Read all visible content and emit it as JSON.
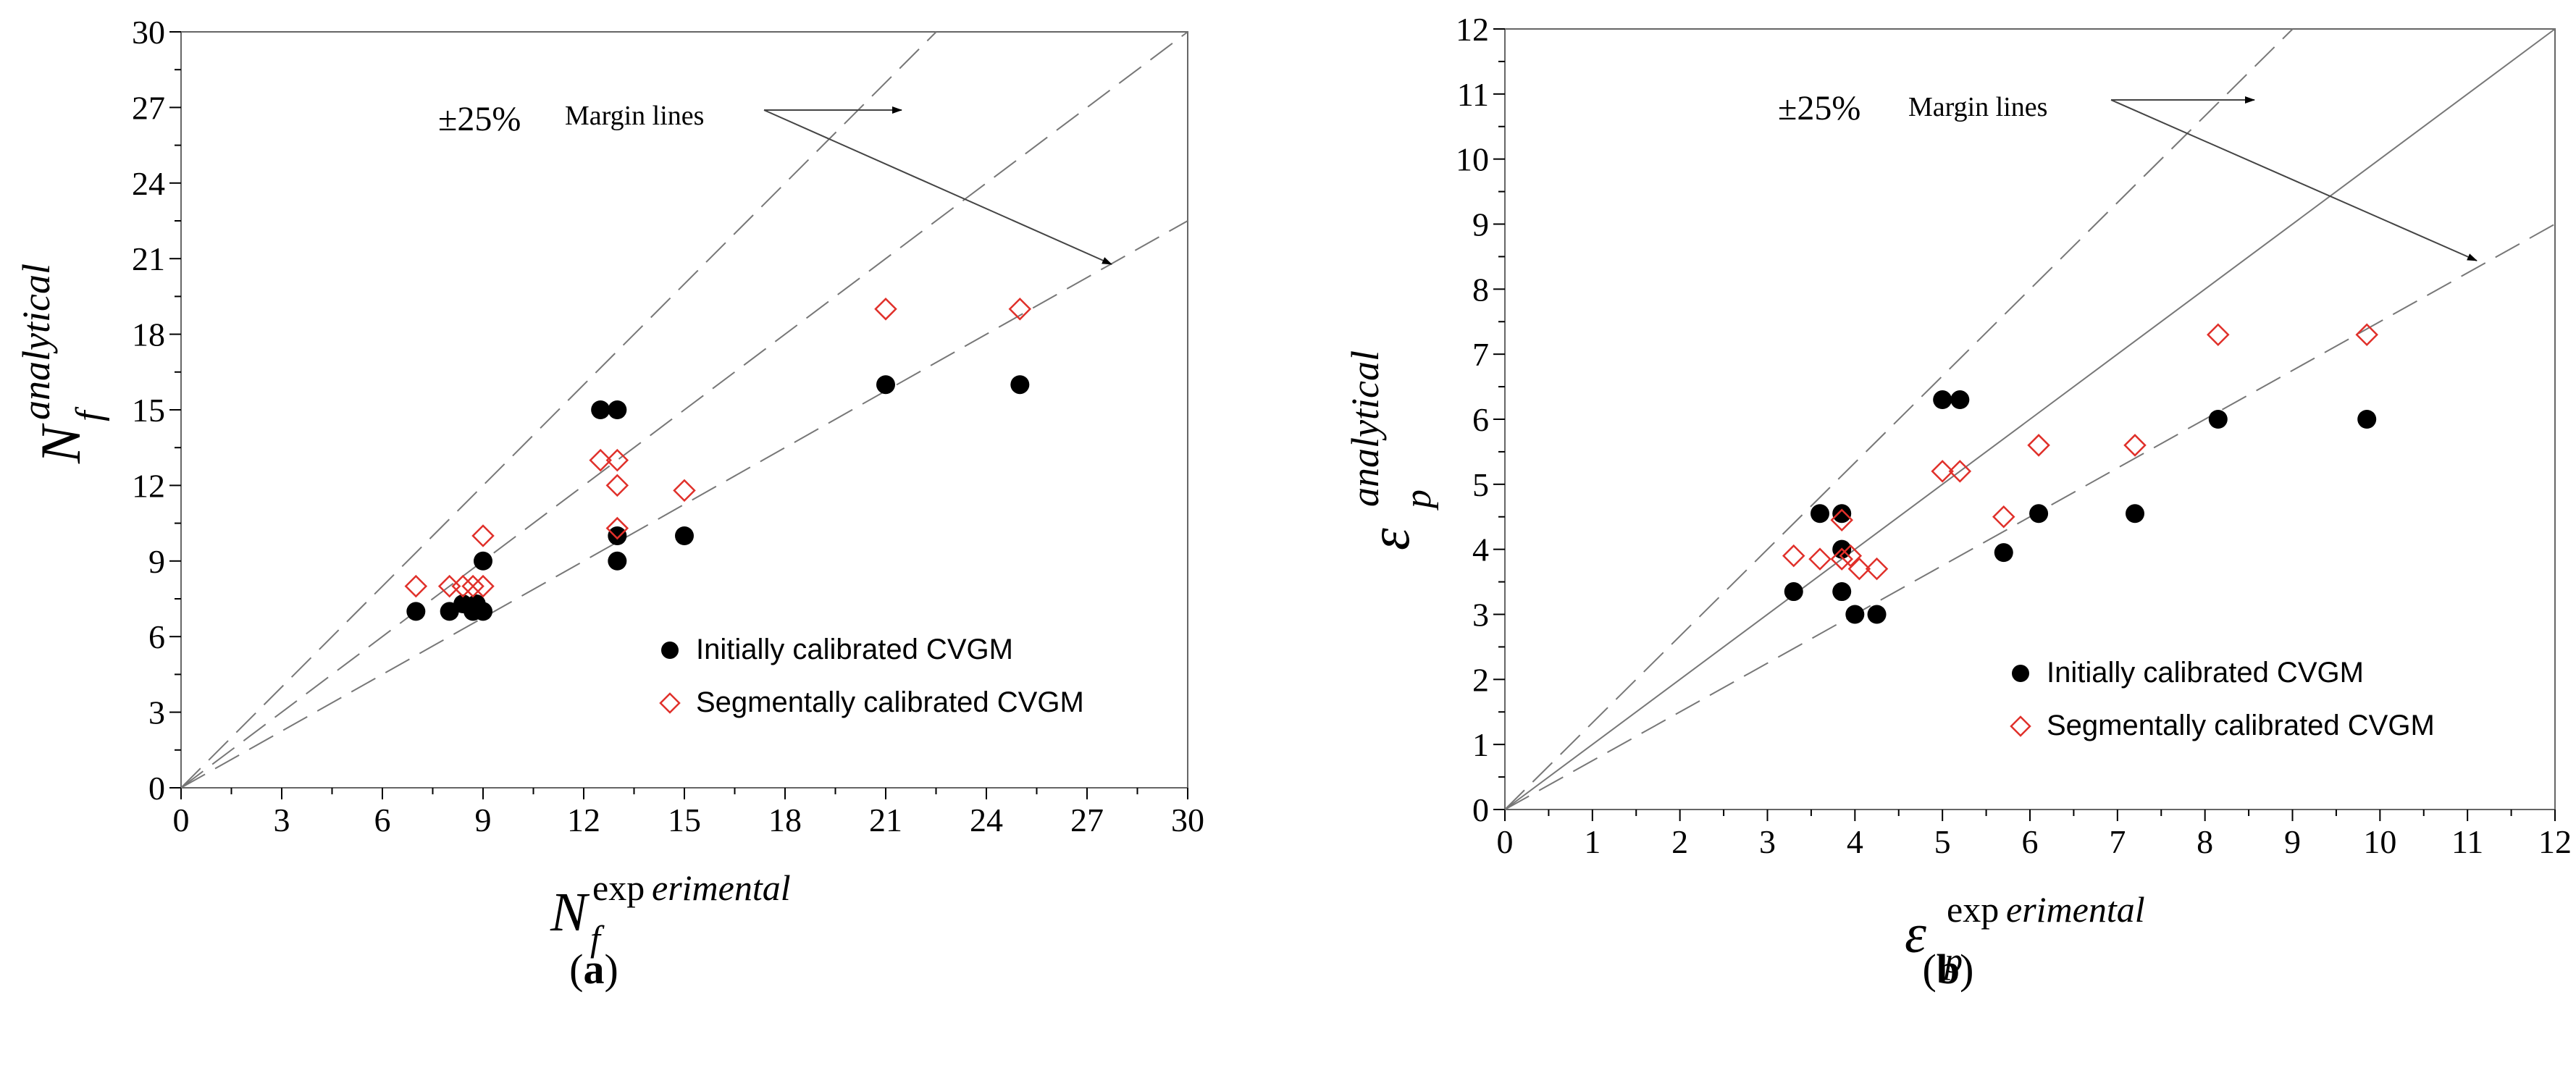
{
  "chart_data": [
    {
      "type": "scatter",
      "panel": "(a)",
      "panel_open": "(",
      "panel_letter": "a",
      "panel_close": ")",
      "xlabel": {
        "symbol": "N",
        "subscript": "f",
        "superscript_upright": "exp",
        "superscript_italic": "erimental"
      },
      "ylabel": {
        "symbol": "N",
        "subscript": "f",
        "superscript_italic": "analytical"
      },
      "xlim": [
        0,
        30
      ],
      "ylim": [
        0,
        30
      ],
      "xticks": [
        0,
        3,
        6,
        9,
        12,
        15,
        18,
        21,
        24,
        27,
        30
      ],
      "yticks": [
        0,
        3,
        6,
        9,
        12,
        15,
        18,
        21,
        24,
        27,
        30
      ],
      "reference_lines": {
        "slopes": [
          1.333,
          1.0,
          0.75
        ],
        "style": "dashed"
      },
      "annotation": {
        "text_pm": "±25%",
        "text": "Margin lines"
      },
      "legend_position": "bottom-right",
      "series": [
        {
          "name": "Initially calibrated CVGM",
          "marker": "filled-circle",
          "color": "#000000",
          "x": [
            7,
            8,
            8.4,
            8.7,
            9,
            9,
            12.5,
            13,
            13,
            13,
            15,
            21,
            25,
            8.8
          ],
          "y": [
            7,
            7,
            7.3,
            7,
            7,
            9,
            15,
            15,
            10,
            9,
            10,
            16,
            16,
            7.3
          ]
        },
        {
          "name": "Segmentally calibrated CVGM",
          "marker": "open-diamond",
          "color": "#e0302a",
          "x": [
            7,
            8,
            8.4,
            8.7,
            9,
            9,
            12.5,
            13,
            13,
            13,
            15,
            21,
            25
          ],
          "y": [
            8,
            8,
            8,
            8,
            8,
            10,
            13,
            13,
            12,
            10.3,
            11.8,
            19,
            19
          ]
        }
      ]
    },
    {
      "type": "scatter",
      "panel": "(b)",
      "panel_open": "(",
      "panel_letter": "b",
      "panel_close": ")",
      "xlabel": {
        "symbol": "ε",
        "subscript": "p",
        "superscript_upright": "exp",
        "superscript_italic": "erimental"
      },
      "ylabel": {
        "symbol": "ε",
        "subscript": "p",
        "superscript_italic": "analytical"
      },
      "xlim": [
        0,
        12
      ],
      "ylim": [
        0,
        12
      ],
      "xticks": [
        0,
        1,
        2,
        3,
        4,
        5,
        6,
        7,
        8,
        9,
        10,
        11,
        12
      ],
      "yticks": [
        0,
        1,
        2,
        3,
        4,
        5,
        6,
        7,
        8,
        9,
        10,
        11,
        12
      ],
      "reference_lines": {
        "slopes": [
          1.333,
          1.0,
          0.75
        ],
        "style": "dashed-solid-dashed"
      },
      "annotation": {
        "text_pm": "±25%",
        "text": "Margin lines"
      },
      "legend_position": "bottom-right",
      "series": [
        {
          "name": "Initially calibrated CVGM",
          "marker": "filled-circle",
          "color": "#000000",
          "x": [
            3.3,
            3.6,
            3.85,
            3.85,
            3.85,
            4.0,
            4.25,
            5.0,
            5.2,
            5.7,
            6.1,
            7.2,
            8.15,
            9.85
          ],
          "y": [
            3.35,
            4.55,
            4.55,
            4.0,
            3.35,
            3.0,
            3.0,
            6.3,
            6.3,
            3.95,
            4.55,
            4.55,
            6.0,
            6.0
          ]
        },
        {
          "name": "Segmentally calibrated CVGM",
          "marker": "open-diamond",
          "color": "#e0302a",
          "x": [
            3.3,
            3.6,
            3.85,
            3.85,
            3.95,
            4.05,
            4.25,
            5.0,
            5.2,
            5.7,
            6.1,
            7.2,
            8.15,
            9.85
          ],
          "y": [
            3.9,
            3.85,
            4.45,
            3.85,
            3.9,
            3.7,
            3.7,
            5.2,
            5.2,
            4.5,
            5.6,
            5.6,
            7.3,
            7.3
          ]
        }
      ]
    }
  ]
}
